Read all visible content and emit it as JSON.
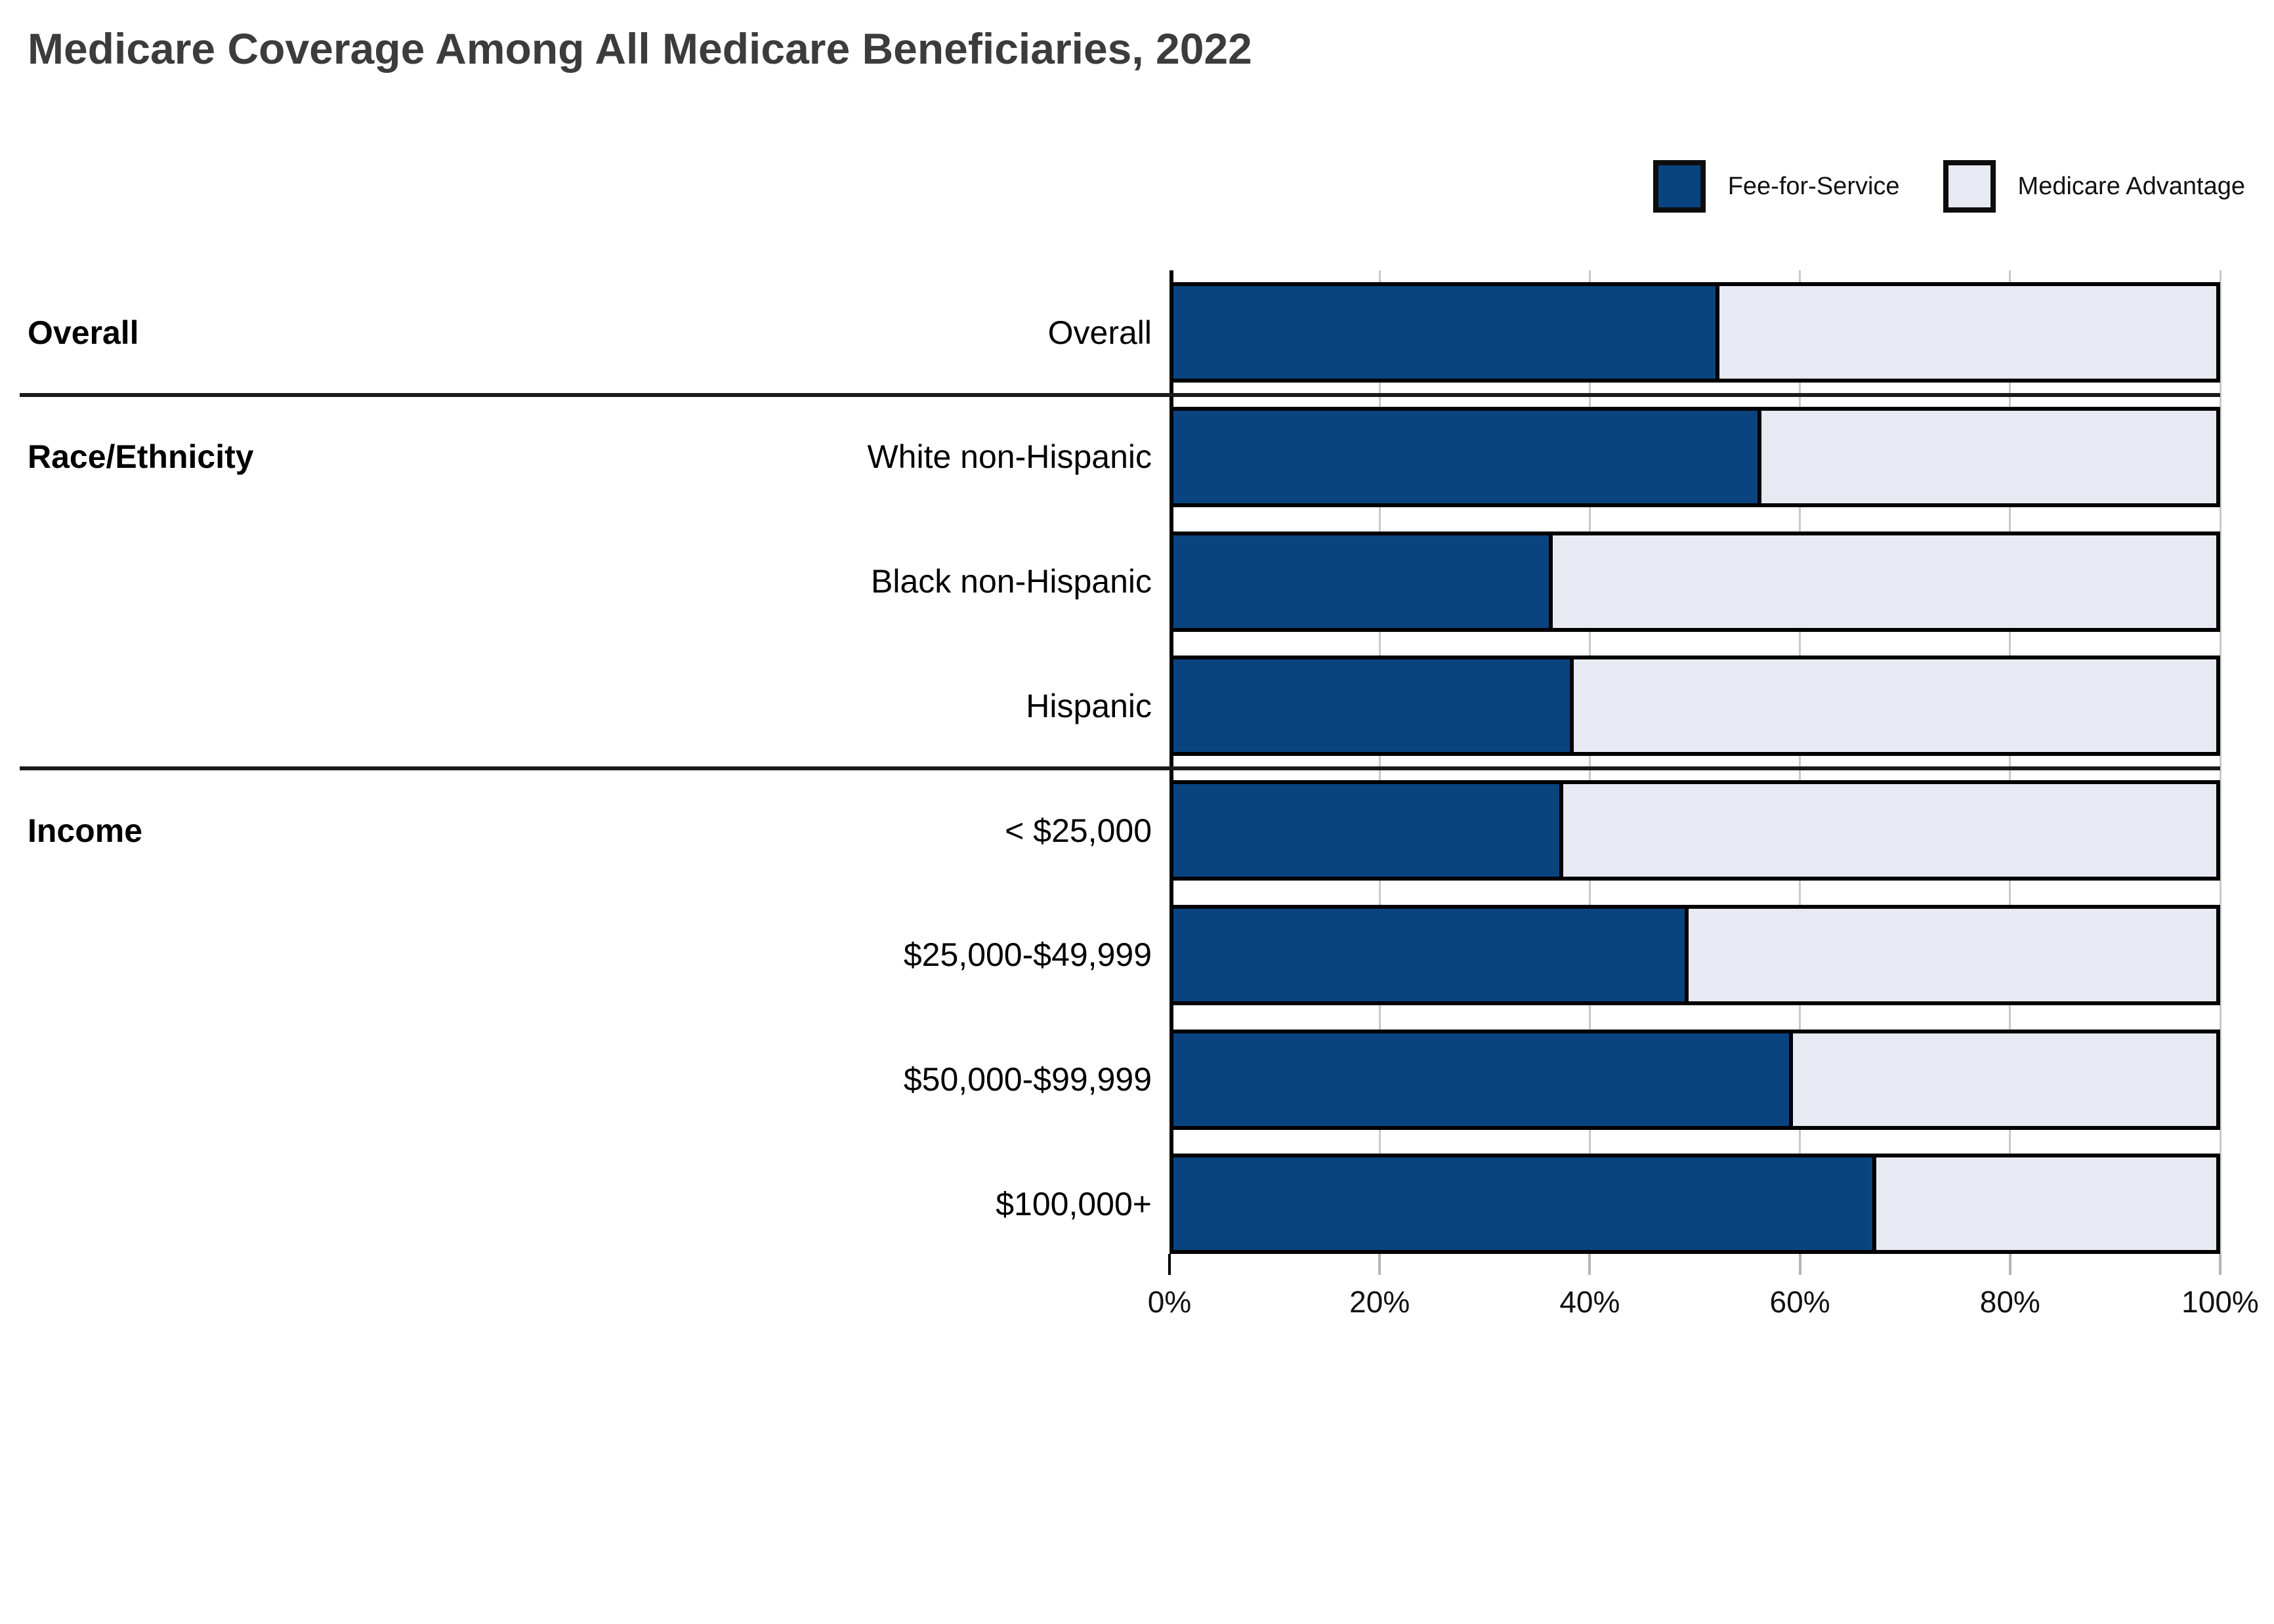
{
  "title": "Medicare Coverage Among All Medicare Beneficiaries, 2022",
  "legend": {
    "items": [
      {
        "label": "Fee-for-Service",
        "color": "#0A4480"
      },
      {
        "label": "Medicare Advantage",
        "color": "#E7EAF2"
      }
    ]
  },
  "colors": {
    "fee_for_service": "#0A4480",
    "medicare_advantage": "#E7EAF2",
    "bar_border": "#000000",
    "gridline": "#C9C9C9",
    "axis": "#000000",
    "tick": "#B5B5B5",
    "separator": "#1B1B1B",
    "title_text": "#3C3C3C"
  },
  "chart_data": {
    "type": "bar",
    "orientation": "horizontal",
    "stacked": true,
    "title": "Medicare Coverage Among All Medicare Beneficiaries, 2022",
    "xlabel": "",
    "ylabel": "",
    "xlim": [
      0,
      100
    ],
    "units": "percent",
    "grid": true,
    "legend_position": "top-right",
    "x_tick_values": [
      0,
      20,
      40,
      60,
      80,
      100
    ],
    "x_tick_labels": [
      "0%",
      "20%",
      "40%",
      "60%",
      "80%",
      "100%"
    ],
    "categories": [
      "Overall",
      "White non-Hispanic",
      "Black non-Hispanic",
      "Hispanic",
      "< $25,000",
      "$25,000-$49,999",
      "$50,000-$99,999",
      "$100,000+"
    ],
    "series": [
      {
        "name": "Fee-for-Service",
        "color": "#0A4480",
        "values": [
          52,
          56,
          36,
          38,
          37,
          49,
          59,
          67
        ]
      },
      {
        "name": "Medicare Advantage",
        "color": "#E7EAF2",
        "values": [
          48,
          44,
          64,
          62,
          63,
          51,
          41,
          33
        ]
      }
    ],
    "groups": [
      {
        "label": "Overall",
        "categories": [
          "Overall"
        ]
      },
      {
        "label": "Race/Ethnicity",
        "categories": [
          "White non-Hispanic",
          "Black non-Hispanic",
          "Hispanic"
        ]
      },
      {
        "label": "Income",
        "categories": [
          "< $25,000",
          "$25,000-$49,999",
          "$50,000-$99,999",
          "$100,000+"
        ]
      }
    ]
  }
}
